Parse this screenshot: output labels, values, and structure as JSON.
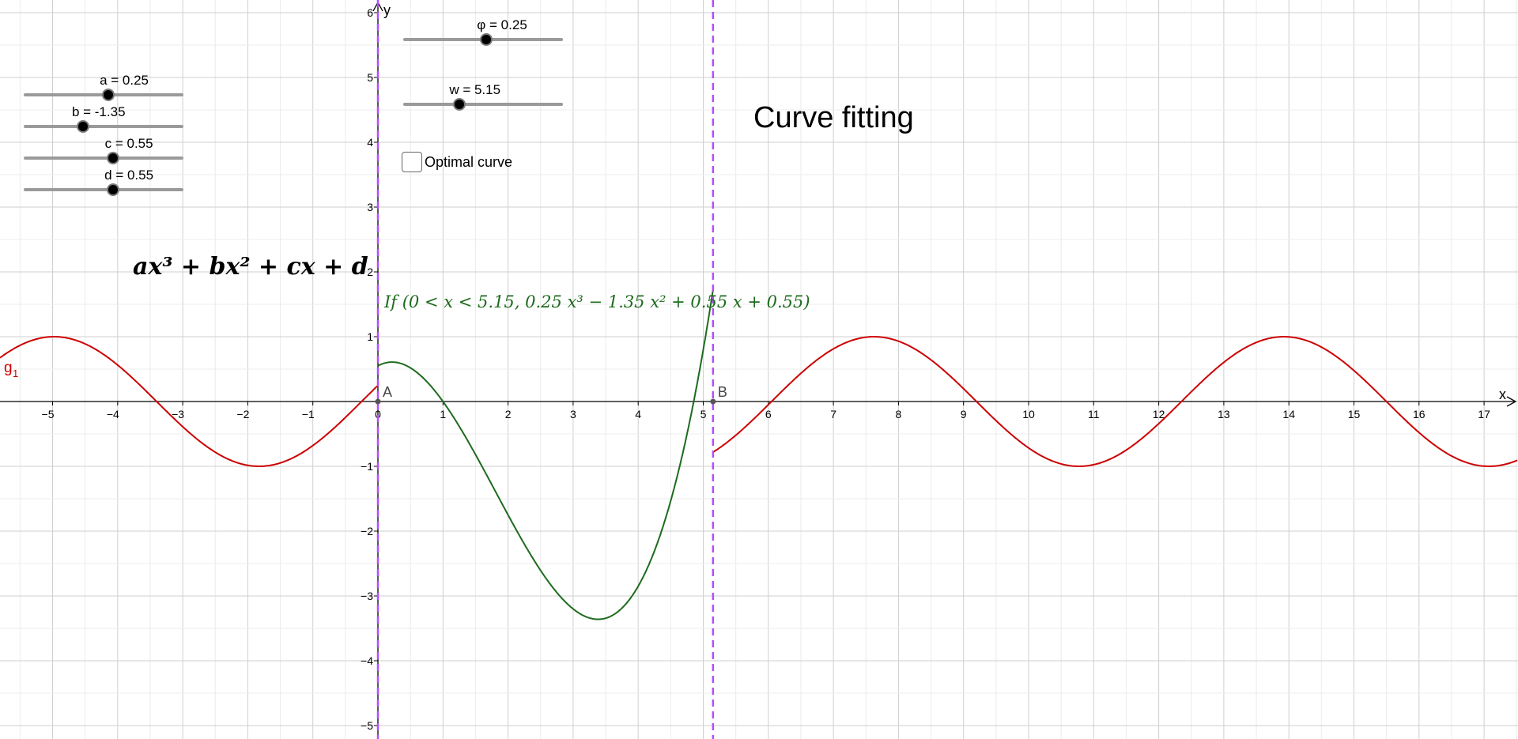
{
  "colors": {
    "sine_curve": "#cc0000",
    "poly_curve": "#1e6b1e",
    "boundary_line": "#b44dff",
    "grid": "#d0d0d0",
    "axis": "#000000"
  },
  "sliders": [
    {
      "id": "a",
      "label": "a = 0.25",
      "fraction": 0.53
    },
    {
      "id": "b",
      "label": "b = -1.35",
      "fraction": 0.37
    },
    {
      "id": "c",
      "label": "c = 0.55",
      "fraction": 0.56
    },
    {
      "id": "d",
      "label": "d = 0.55",
      "fraction": 0.56
    },
    {
      "id": "phi",
      "label": "φ = 0.25",
      "fraction": 0.52
    },
    {
      "id": "w",
      "label": "w = 5.15",
      "fraction": 0.35
    }
  ],
  "checkbox": {
    "label": "Optimal curve",
    "checked": false
  },
  "title": "Curve fitting",
  "formula": {
    "display": "ax³ + bx² + cx + d"
  },
  "curve_label": {
    "text": "If (0 < x < 5.15, 0.25 x³ − 1.35 x² + 0.55 x + 0.55)"
  },
  "points": [
    {
      "name": "A",
      "x": 0,
      "y": 0
    },
    {
      "name": "B",
      "x": 5.15,
      "y": 0
    }
  ],
  "sine_label": "g",
  "sine_label_sub": "1",
  "chart_data": {
    "type": "line",
    "xlabel": "x",
    "ylabel": "y",
    "xlim": [
      -5.85,
      17.55
    ],
    "ylim": [
      -5.2,
      6.15
    ],
    "x_ticks": [
      -5,
      -4,
      -3,
      -2,
      -1,
      0,
      1,
      2,
      3,
      4,
      5,
      6,
      7,
      8,
      9,
      10,
      11,
      12,
      13,
      14,
      15,
      16,
      17
    ],
    "y_ticks": [
      -5,
      -4,
      -3,
      -2,
      -1,
      1,
      2,
      3,
      4,
      5,
      6
    ],
    "x_tick_labels": [
      "−5",
      "−4",
      "−3",
      "−2",
      "−1",
      "0",
      "1",
      "2",
      "3",
      "4",
      "5",
      "6",
      "7",
      "8",
      "9",
      "10",
      "11",
      "12",
      "13",
      "14",
      "15",
      "16",
      "17"
    ],
    "y_tick_labels": [
      "−5",
      "−4",
      "−3",
      "−2",
      "−1",
      "1",
      "2",
      "3",
      "4",
      "5",
      "6"
    ],
    "grid": true,
    "series": [
      {
        "name": "g1",
        "kind": "sine",
        "amplitude": 1,
        "period": 6.3,
        "phase": 0.25,
        "domain": "x ≤ 0 or x ≥ 5.15"
      },
      {
        "kind": "cubic",
        "coefficients": [
          0.25,
          -1.35,
          0.55,
          0.55
        ],
        "domain": [
          0,
          5.15
        ]
      }
    ],
    "vertical_lines": [
      0,
      5.15
    ]
  }
}
